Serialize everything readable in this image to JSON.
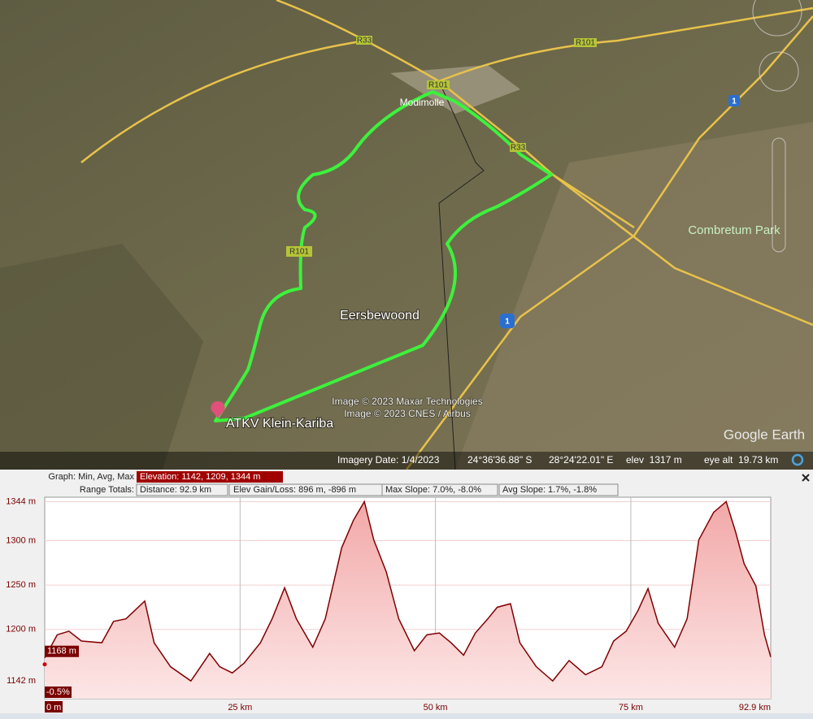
{
  "map": {
    "labels": [
      "R33",
      "R101",
      "R101",
      "Modimolle",
      "R33",
      "R101",
      "1",
      "1",
      "Combretum Park",
      "Eersbewoond",
      "ATKV Klein-Kariba",
      "Image © 2023 Maxar Technologies",
      "Image © 2023 CNES / Airbus",
      "Google Earth"
    ]
  },
  "status_bar": {
    "imagery_date": "Imagery Date: 1/4/2023",
    "latitude": "24°36'36.88\" S",
    "longitude": "28°24'22.01\" E",
    "elevation": "elev  1317 m",
    "eye_alt": "eye alt  19.73 km"
  },
  "profile": {
    "graph_label": "Graph: Min, Avg, Max",
    "elevation": "Elevation: 1142, 1209, 1344 m",
    "range_label": "Range Totals:",
    "distance": "Distance: 92.9 km",
    "gain_loss": "Elev Gain/Loss: 896 m, -896 m",
    "max_slope": "Max Slope: 7.0%, -8.0%",
    "avg_slope": "Avg Slope: 1.7%, -1.8%"
  },
  "chart_data": {
    "type": "area",
    "x": [
      0,
      1.6,
      3.1,
      4.7,
      7.3,
      8.8,
      10.4,
      12.8,
      14.0,
      16.1,
      18.7,
      19.8,
      21.1,
      22.4,
      24.0,
      25.5,
      27.6,
      29.1,
      30.7,
      32.2,
      34.3,
      35.9,
      38.0,
      39.5,
      40.9,
      42.1,
      43.7,
      45.3,
      47.3,
      48.9,
      50.5,
      52.0,
      53.6,
      55.1,
      56.7,
      57.9,
      59.6,
      60.8,
      62.9,
      65.0,
      67.1,
      69.2,
      71.3,
      72.8,
      74.4,
      75.9,
      77.2,
      78.5,
      80.6,
      82.2,
      83.7,
      85.6,
      87.2,
      88.4,
      89.5,
      91.0,
      92.1,
      92.9
    ],
    "series": [
      {
        "name": "Elevation",
        "color": "#800000",
        "values": [
          1168,
          1194,
          1198,
          1187,
          1185,
          1209,
          1212,
          1232,
          1185,
          1158,
          1142,
          1156,
          1173,
          1158,
          1151,
          1162,
          1185,
          1212,
          1247,
          1212,
          1180,
          1212,
          1292,
          1323,
          1344,
          1301,
          1265,
          1212,
          1176,
          1194,
          1196,
          1185,
          1171,
          1196,
          1212,
          1225,
          1229,
          1185,
          1158,
          1142,
          1165,
          1149,
          1158,
          1187,
          1198,
          1221,
          1246,
          1207,
          1180,
          1212,
          1301,
          1332,
          1344,
          1310,
          1274,
          1249,
          1194,
          1169
        ]
      }
    ],
    "xlim": [
      0,
      92.9
    ],
    "ylim": [
      1122,
      1349
    ],
    "xticks": [
      {
        "value": 0,
        "label": "0 m"
      },
      {
        "value": 25,
        "label": "25 km"
      },
      {
        "value": 50,
        "label": "50 km"
      },
      {
        "value": 75,
        "label": "75 km"
      },
      {
        "value": 92.9,
        "label": "92.9 km"
      }
    ],
    "yticks": [
      {
        "value": 1142,
        "label": "1142 m"
      },
      {
        "value": 1200,
        "label": "1200 m"
      },
      {
        "value": 1250,
        "label": "1250 m"
      },
      {
        "value": 1300,
        "label": "1300 m"
      },
      {
        "value": 1344,
        "label": "1344 m"
      }
    ],
    "annotations": [
      "1168 m",
      "-0.5%"
    ],
    "grid": true
  }
}
